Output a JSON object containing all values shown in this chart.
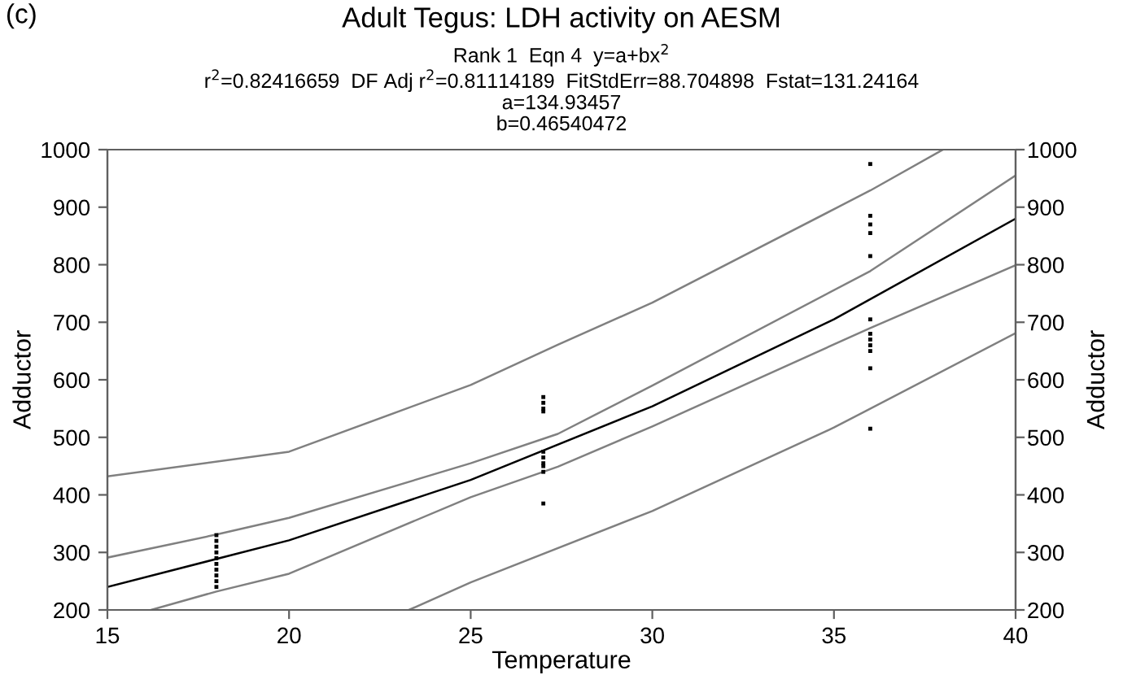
{
  "chart_data": {
    "type": "scatter",
    "title": "Adult Tegus: LDH activity on AESM",
    "subtitle": "Rank 1  Eqn 4  y=a+bx$^{2}$\nr$^{2}$=0.82416659  DF Adj r$^{2}$=0.81114189  FitStdErr=88.704898  Fstat=131.24164\na=134.93457\nb=0.46540472",
    "xlabel": "Temperature",
    "ylabel": "Adductor",
    "y2label": "Adductor",
    "annotations": [
      "(c)"
    ],
    "xlim": [
      15,
      40
    ],
    "xticks": [
      15,
      20,
      25,
      30,
      35,
      40
    ],
    "ylim": [
      200,
      1000
    ],
    "yticks": [
      200,
      300,
      400,
      500,
      600,
      700,
      800,
      900,
      1000
    ],
    "y2lim": [
      200,
      1000
    ],
    "y2ticks": [
      200,
      300,
      400,
      500,
      600,
      700,
      800,
      900,
      1000
    ],
    "grid": false,
    "series": [
      {
        "marker": "square",
        "color": "#000000",
        "x": [
          18,
          18,
          18,
          18,
          18,
          18,
          18,
          18,
          18,
          18,
          27,
          27,
          27,
          27,
          27,
          27,
          27,
          27,
          27,
          27,
          36,
          36,
          36,
          36,
          36,
          36,
          36,
          36,
          36,
          36,
          36,
          36
        ],
        "values": [
          330,
          320,
          310,
          300,
          290,
          280,
          270,
          260,
          250,
          240,
          570,
          560,
          550,
          545,
          475,
          465,
          455,
          450,
          440,
          385,
          975,
          885,
          870,
          855,
          815,
          705,
          680,
          670,
          660,
          650,
          620,
          515
        ]
      },
      {
        "type": "line",
        "color": "#000000",
        "line_style": "solid",
        "x": [
          15,
          20,
          25,
          30,
          35,
          40
        ],
        "values": [
          240,
          321,
          426,
          554,
          705,
          880
        ]
      },
      {
        "type": "line",
        "color": "#808080",
        "line_style": "solid",
        "x": [
          15,
          18,
          20,
          25,
          27.4,
          30,
          36,
          40
        ],
        "values": [
          291,
          331,
          360,
          455,
          506,
          590,
          789,
          955
        ]
      },
      {
        "type": "line",
        "color": "#808080",
        "line_style": "solid",
        "x": [
          16.2,
          18,
          20,
          25,
          27.4,
          30,
          36,
          40
        ],
        "values": [
          200,
          232,
          263,
          396,
          449,
          519,
          690,
          799
        ]
      },
      {
        "type": "line",
        "color": "#808080",
        "line_style": "solid",
        "x": [
          15,
          20,
          25,
          27.4,
          30,
          36,
          38
        ],
        "values": [
          432,
          475,
          591,
          661,
          734,
          929,
          1000
        ]
      },
      {
        "type": "line",
        "color": "#808080",
        "line_style": "solid",
        "x": [
          23.3,
          25,
          30,
          35,
          40
        ],
        "values": [
          200,
          248,
          372,
          517,
          681
        ]
      }
    ]
  }
}
